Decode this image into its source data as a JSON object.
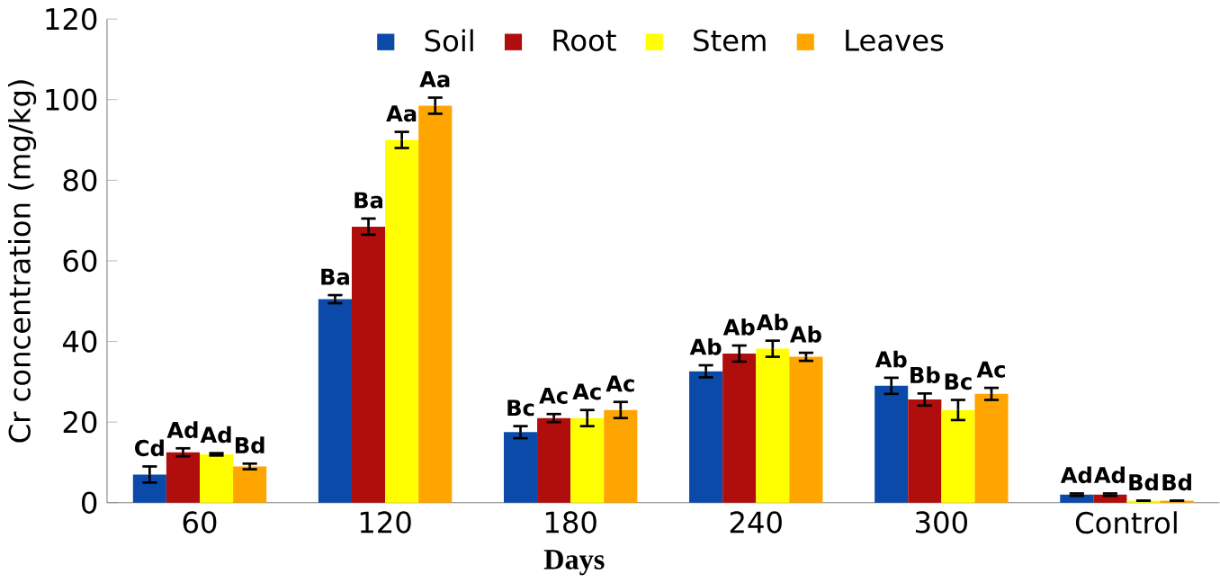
{
  "chart_data": {
    "type": "bar",
    "xlabel": "Days",
    "ylabel": "Cr concentration (mg/kg)",
    "categories": [
      "60",
      "120",
      "180",
      "240",
      "300",
      "Control"
    ],
    "series": [
      {
        "name": "Soil",
        "color": "#0b4aa8",
        "values": [
          7,
          50.5,
          17.5,
          32.6,
          29,
          2
        ],
        "errors": [
          2,
          1,
          1.5,
          1.5,
          2,
          0.3
        ],
        "value_labels": [
          "Cd",
          "Ba",
          "Bc",
          "Ab",
          "Ab",
          "Ad"
        ]
      },
      {
        "name": "Root",
        "color": "#b00d0d",
        "values": [
          12.5,
          68.5,
          21,
          37,
          25.6,
          2
        ],
        "errors": [
          1,
          2,
          1,
          2,
          1.5,
          0.3
        ],
        "value_labels": [
          "Ad",
          "Ba",
          "Ac",
          "Ab",
          "Bb",
          "Ad"
        ]
      },
      {
        "name": "Stem",
        "color": "#ffff00",
        "values": [
          12,
          90,
          21,
          38.2,
          23,
          0.5
        ],
        "errors": [
          0.3,
          2,
          2,
          2,
          2.5,
          null
        ],
        "value_labels": [
          "Ad",
          "Aa",
          "Ac",
          "Ab",
          "Bc",
          "Bd"
        ]
      },
      {
        "name": "Leaves",
        "color": "#ffa500",
        "values": [
          9,
          98.5,
          23,
          36.2,
          27,
          0.5
        ],
        "errors": [
          0.7,
          2,
          2,
          1,
          1.5,
          null
        ],
        "value_labels": [
          "Bd",
          "Aa",
          "Ac",
          "Ab",
          "Ac",
          "Bd"
        ]
      }
    ],
    "ylim": [
      0,
      120
    ],
    "yticks": [
      0,
      20,
      40,
      60,
      80,
      100,
      120
    ],
    "legend": "top",
    "grid": false
  }
}
